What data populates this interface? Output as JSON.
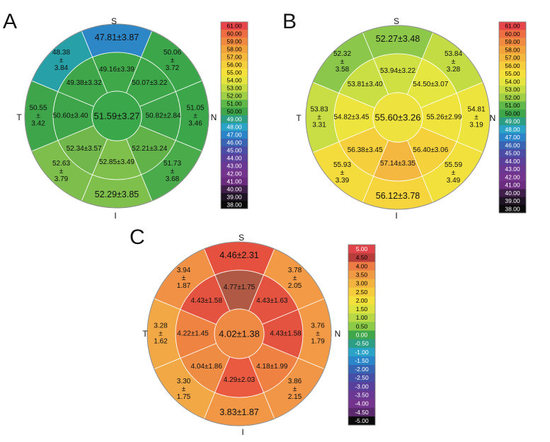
{
  "panels": [
    {
      "letter": "A",
      "orientation": {
        "top": "S",
        "bottom": "I",
        "left": "T",
        "right": "N"
      },
      "center": {
        "text": "51.59±3.27",
        "color": "#3aa84a"
      },
      "inner": [
        {
          "lines": [
            "49.16±3.39"
          ],
          "color": "#3fa848"
        },
        {
          "lines": [
            "50.07±3.22"
          ],
          "color": "#3da649"
        },
        {
          "lines": [
            "50.82±2.84"
          ],
          "color": "#3ea54a"
        },
        {
          "lines": [
            "52.21±3.24"
          ],
          "color": "#62b24a"
        },
        {
          "lines": [
            "52.85±3.49"
          ],
          "color": "#7fbf4c"
        },
        {
          "lines": [
            "52.34±3.57"
          ],
          "color": "#72b74b"
        },
        {
          "lines": [
            "50.60±3.40"
          ],
          "color": "#3ea54a"
        },
        {
          "lines": [
            "49.38±3.32"
          ],
          "color": "#40a64a"
        }
      ],
      "outer": [
        {
          "lines": [
            "47.81±3.87"
          ],
          "color": "#2d86c6"
        },
        {
          "lines": [
            "50.06",
            "±",
            "3.72"
          ],
          "color": "#3ca74a"
        },
        {
          "lines": [
            "51.05",
            "±",
            "3.46"
          ],
          "color": "#3ba64a"
        },
        {
          "lines": [
            "51.73",
            "±",
            "3.68"
          ],
          "color": "#4aab4a"
        },
        {
          "lines": [
            "52.29±3.85"
          ],
          "color": "#7fbf4c"
        },
        {
          "lines": [
            "52.63",
            "±",
            "3.79"
          ],
          "color": "#7ebe4c"
        },
        {
          "lines": [
            "50.55",
            "±",
            "3.42"
          ],
          "color": "#3ea54a"
        },
        {
          "lines": [
            "48.38",
            "±",
            "3.84"
          ],
          "color": "#27a0a8"
        }
      ],
      "scale": {
        "labels": [
          "61.00",
          "60.00",
          "59.00",
          "58.00",
          "57.00",
          "56.00",
          "55.00",
          "54.00",
          "53.00",
          "52.00",
          "51.00",
          "50.00",
          "49.00",
          "48.00",
          "47.00",
          "46.00",
          "45.00",
          "44.00",
          "43.00",
          "42.00",
          "41.00",
          "40.00",
          "39.00",
          "38.00"
        ],
        "colors": [
          "#e8454b",
          "#ef6d43",
          "#f08a40",
          "#f2a33c",
          "#f4b83d",
          "#f6cf3c",
          "#f6e13b",
          "#e6e53f",
          "#c6dc43",
          "#9fcf47",
          "#5fb94a",
          "#3fa64a",
          "#2c9e84",
          "#2aa3c7",
          "#2b83c8",
          "#3963b3",
          "#4a4ca6",
          "#5a3f9b",
          "#6a3893",
          "#74338d",
          "#6b2c80",
          "#3f1f4a",
          "#1e1322",
          "#0a0a0a"
        ],
        "text_colors": [
          "#000000",
          "#000000",
          "#000000",
          "#000000",
          "#000000",
          "#000000",
          "#000000",
          "#000000",
          "#000000",
          "#000000",
          "#000000",
          "#000000",
          "#ffffff",
          "#ffffff",
          "#ffffff",
          "#ffffff",
          "#ffffff",
          "#ffffff",
          "#ffffff",
          "#ffffff",
          "#ffffff",
          "#ffffff",
          "#ffffff",
          "#ffffff"
        ]
      }
    },
    {
      "letter": "B",
      "orientation": {
        "top": "S",
        "bottom": "I",
        "left": "T",
        "right": "N"
      },
      "center": {
        "text": "55.60±3.26",
        "color": "#eee23f"
      },
      "inner": [
        {
          "lines": [
            "53.94±3.22"
          ],
          "color": "#cfe043"
        },
        {
          "lines": [
            "54.50±3.07"
          ],
          "color": "#e5e740"
        },
        {
          "lines": [
            "55.26±2.99"
          ],
          "color": "#f0e33d"
        },
        {
          "lines": [
            "56.40±3.06"
          ],
          "color": "#f5d23c"
        },
        {
          "lines": [
            "57.14±3.35"
          ],
          "color": "#f4b840"
        },
        {
          "lines": [
            "56.38±3.45"
          ],
          "color": "#f5d03c"
        },
        {
          "lines": [
            "54.82±3.45"
          ],
          "color": "#ede43e"
        },
        {
          "lines": [
            "53.81±3.40"
          ],
          "color": "#cadf44"
        }
      ],
      "outer": [
        {
          "lines": [
            "52.27±3.48"
          ],
          "color": "#8ec84a"
        },
        {
          "lines": [
            "53.84",
            "±",
            "3.28"
          ],
          "color": "#c3dc44"
        },
        {
          "lines": [
            "54.81",
            "±",
            "3.19"
          ],
          "color": "#ede43e"
        },
        {
          "lines": [
            "55.59",
            "±",
            "3.49"
          ],
          "color": "#f2e03d"
        },
        {
          "lines": [
            "56.12±3.78"
          ],
          "color": "#f6d43c"
        },
        {
          "lines": [
            "55.93",
            "±",
            "3.39"
          ],
          "color": "#f4dc3c"
        },
        {
          "lines": [
            "53.83",
            "±",
            "3.31"
          ],
          "color": "#c8de44"
        },
        {
          "lines": [
            "52.32",
            "±",
            "3.58"
          ],
          "color": "#8bc74b"
        }
      ],
      "scale": {
        "labels": [
          "61.00",
          "60.00",
          "59.00",
          "58.00",
          "57.00",
          "56.00",
          "55.00",
          "54.00",
          "53.00",
          "52.00",
          "51.00",
          "50.00",
          "49.00",
          "48.00",
          "47.00",
          "46.00",
          "45.00",
          "44.00",
          "43.00",
          "42.00",
          "41.00",
          "40.00",
          "39.00",
          "38.00"
        ],
        "colors": [
          "#e8454b",
          "#ef6d43",
          "#f08a40",
          "#f2a33c",
          "#f4b83d",
          "#f6cf3c",
          "#f6e13b",
          "#e6e53f",
          "#c6dc43",
          "#9fcf47",
          "#5fb94a",
          "#3fa64a",
          "#2c9e84",
          "#2aa3c7",
          "#2b83c8",
          "#3963b3",
          "#4a4ca6",
          "#5a3f9b",
          "#6a3893",
          "#74338d",
          "#6b2c80",
          "#3f1f4a",
          "#1e1322",
          "#0a0a0a"
        ],
        "text_colors": [
          "#000000",
          "#000000",
          "#000000",
          "#000000",
          "#000000",
          "#000000",
          "#000000",
          "#000000",
          "#000000",
          "#000000",
          "#000000",
          "#000000",
          "#ffffff",
          "#ffffff",
          "#ffffff",
          "#ffffff",
          "#ffffff",
          "#ffffff",
          "#ffffff",
          "#ffffff",
          "#ffffff",
          "#ffffff",
          "#ffffff",
          "#ffffff"
        ]
      }
    },
    {
      "letter": "C",
      "orientation": {
        "top": "S",
        "bottom": "I",
        "left": "T",
        "right": "N"
      },
      "center": {
        "text": "4.02±1.38",
        "color": "#ef8a44"
      },
      "inner": [
        {
          "lines": [
            "4.77±1.75"
          ],
          "color": "#b05a45"
        },
        {
          "lines": [
            "4.43±1.63"
          ],
          "color": "#e4533f"
        },
        {
          "lines": [
            "4.43±1.58"
          ],
          "color": "#e4533f"
        },
        {
          "lines": [
            "4.18±1.99"
          ],
          "color": "#ef8242"
        },
        {
          "lines": [
            "4.29±2.03"
          ],
          "color": "#e95a40"
        },
        {
          "lines": [
            "4.04±1.86"
          ],
          "color": "#ef8c44"
        },
        {
          "lines": [
            "4.22±1.45"
          ],
          "color": "#ef8442"
        },
        {
          "lines": [
            "4.43±1.58"
          ],
          "color": "#e4533f"
        }
      ],
      "outer": [
        {
          "lines": [
            "4.46±2.31"
          ],
          "color": "#e5503f"
        },
        {
          "lines": [
            "3.78",
            "±",
            "2.05"
          ],
          "color": "#f29a45"
        },
        {
          "lines": [
            "3.76",
            "±",
            "1.79"
          ],
          "color": "#f29a45"
        },
        {
          "lines": [
            "3.86",
            "±",
            "2.15"
          ],
          "color": "#f19546"
        },
        {
          "lines": [
            "3.83±1.87"
          ],
          "color": "#f29746"
        },
        {
          "lines": [
            "3.30",
            "±",
            "1.75"
          ],
          "color": "#f2a945"
        },
        {
          "lines": [
            "3.28",
            "±",
            "1.62"
          ],
          "color": "#f2a945"
        },
        {
          "lines": [
            "3.94",
            "±",
            "1.87"
          ],
          "color": "#f19145"
        }
      ],
      "scale": {
        "labels": [
          "5.00",
          "4.50",
          "4.00",
          "3.50",
          "3.00",
          "2.50",
          "2.00",
          "1.50",
          "1.00",
          "0.50",
          "0.00",
          "-0.50",
          "-1.00",
          "-1.50",
          "-2.00",
          "-2.50",
          "-3.00",
          "-3.50",
          "-4.00",
          "-4.50",
          "-5.00"
        ],
        "colors": [
          "#e0434a",
          "#b83c3a",
          "#ec7c43",
          "#f19a44",
          "#f3b33f",
          "#f5cc3c",
          "#f3e03b",
          "#dce33f",
          "#b8d845",
          "#8ccb48",
          "#3fa64a",
          "#2c9e84",
          "#2aa3c7",
          "#2a86c9",
          "#3565b3",
          "#464fa6",
          "#583f9c",
          "#6a3893",
          "#74338d",
          "#5a2a6d",
          "#0a0a0a"
        ],
        "text_colors": [
          "#ffffff",
          "#000000",
          "#000000",
          "#000000",
          "#000000",
          "#000000",
          "#000000",
          "#000000",
          "#000000",
          "#000000",
          "#ffffff",
          "#ffffff",
          "#ffffff",
          "#ffffff",
          "#ffffff",
          "#ffffff",
          "#ffffff",
          "#ffffff",
          "#ffffff",
          "#ffffff",
          "#ffffff"
        ]
      }
    }
  ]
}
